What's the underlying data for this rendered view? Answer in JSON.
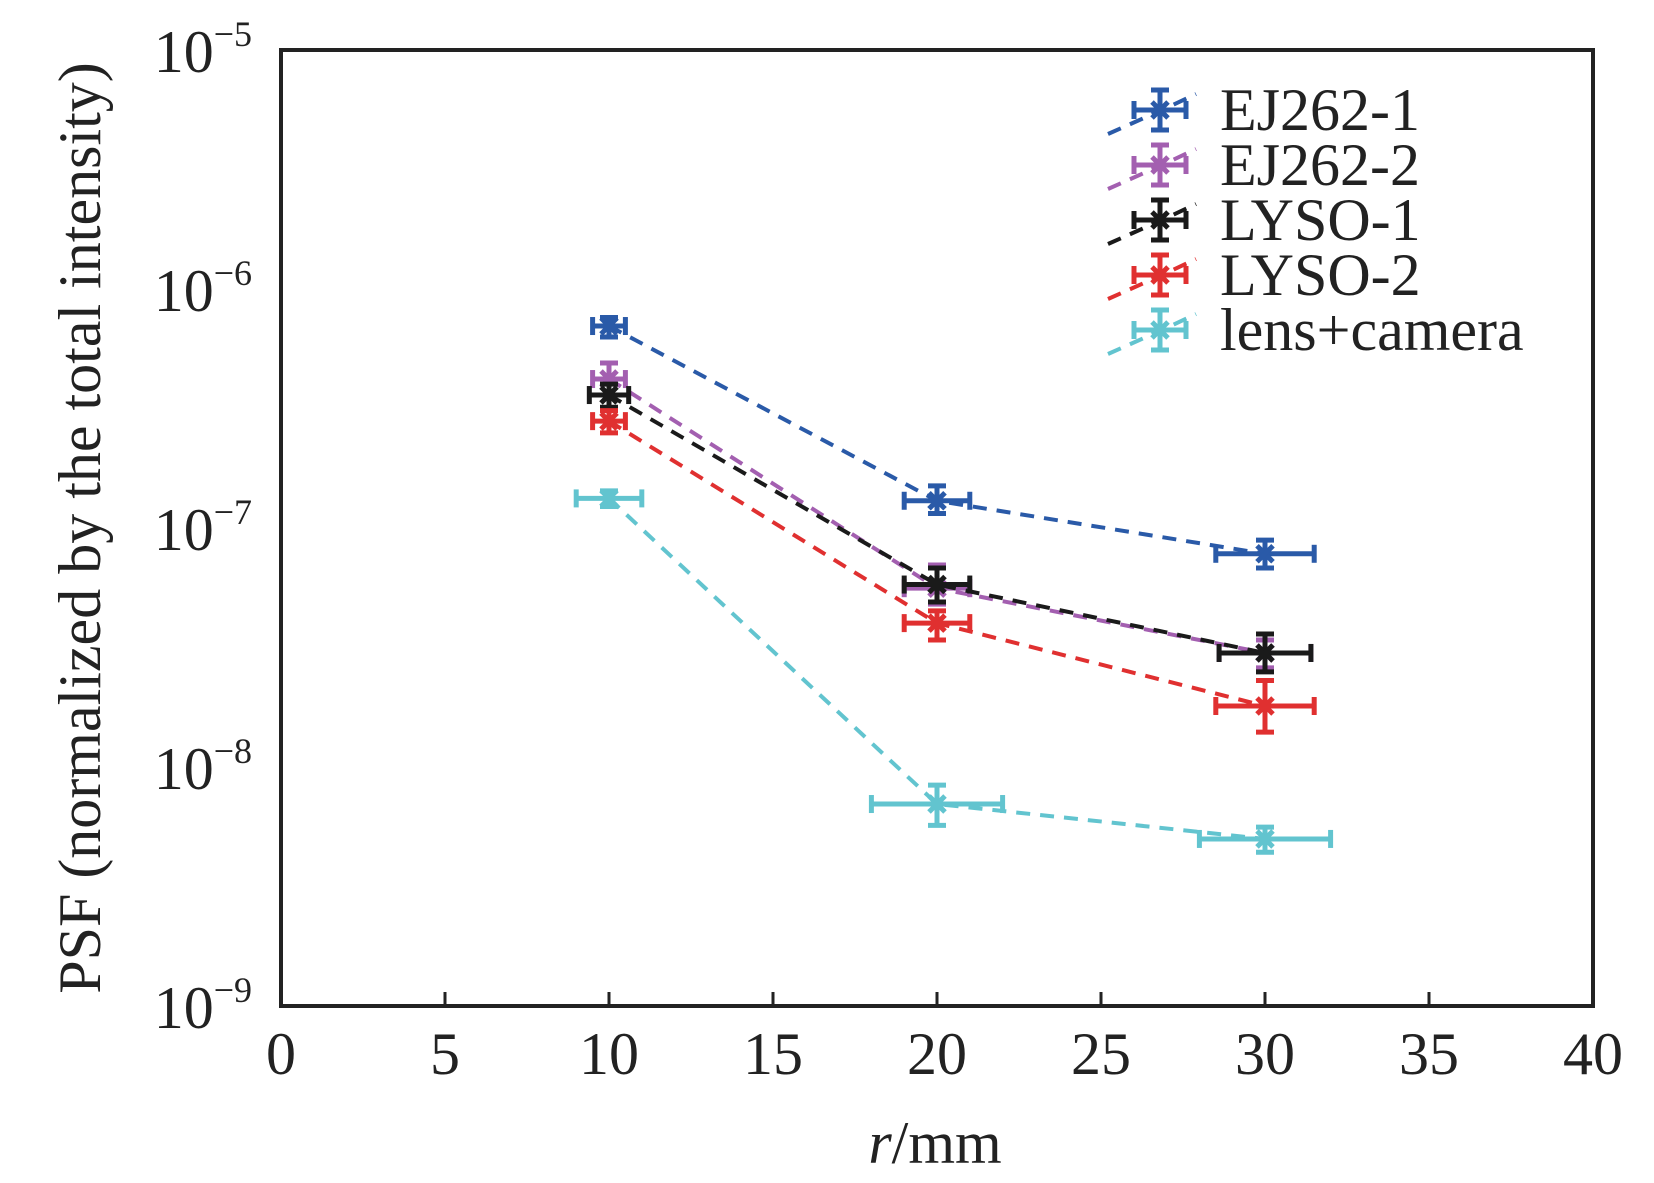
{
  "chart_data": {
    "type": "scatter",
    "xlabel": {
      "italic": "r",
      "rest": "/mm"
    },
    "ylabel": "PSF (normalized by the total intensity)",
    "xlim": [
      0,
      40
    ],
    "ylim": [
      1e-09,
      1e-05
    ],
    "yscale": "log",
    "grid": false,
    "legend_position": "top-right",
    "x_ticks": [
      "0",
      "5",
      "10",
      "15",
      "20",
      "25",
      "30",
      "35",
      "40"
    ],
    "y_ticks": [
      {
        "base": "10",
        "exp": "−5",
        "value": 1e-05
      },
      {
        "base": "10",
        "exp": "−6",
        "value": 1e-06
      },
      {
        "base": "10",
        "exp": "−7",
        "value": 1e-07
      },
      {
        "base": "10",
        "exp": "−8",
        "value": 1e-08
      },
      {
        "base": "10",
        "exp": "−9",
        "value": 1e-09
      }
    ],
    "series": [
      {
        "name": "EJ262-1",
        "color": "#2a5aa8",
        "x": [
          10,
          20,
          30
        ],
        "y": [
          7e-07,
          1.3e-07,
          7.8e-08
        ],
        "xerr": [
          0.5,
          1.0,
          1.5
        ],
        "yerr_low": [
          6.3e-07,
          1.15e-07,
          6.8e-08
        ],
        "yerr_high": [
          7.6e-07,
          1.5e-07,
          8.9e-08
        ]
      },
      {
        "name": "EJ262-2",
        "color": "#a35fb0",
        "x": [
          10,
          20,
          30
        ],
        "y": [
          4.2e-07,
          5.6e-08,
          3e-08
        ],
        "xerr": [
          0.5,
          1.0,
          1.4
        ],
        "yerr_low": [
          3.6e-07,
          4.8e-08,
          2.6e-08
        ],
        "yerr_high": [
          4.9e-07,
          7e-08,
          3.4e-08
        ]
      },
      {
        "name": "LYSO-1",
        "color": "#1a1a1a",
        "x": [
          10,
          20,
          30
        ],
        "y": [
          3.6e-07,
          5.8e-08,
          3e-08
        ],
        "xerr": [
          0.6,
          1.0,
          1.4
        ],
        "yerr_low": [
          3.2e-07,
          4.9e-08,
          2.5e-08
        ],
        "yerr_high": [
          4e-07,
          6.8e-08,
          3.6e-08
        ]
      },
      {
        "name": "LYSO-2",
        "color": "#e03030",
        "x": [
          10,
          20,
          30
        ],
        "y": [
          2.8e-07,
          4e-08,
          1.8e-08
        ],
        "xerr": [
          0.5,
          1.0,
          1.5
        ],
        "yerr_low": [
          2.5e-07,
          3.4e-08,
          1.4e-08
        ],
        "yerr_high": [
          3.1e-07,
          4.5e-08,
          2.3e-08
        ]
      },
      {
        "name": "lens+camera",
        "color": "#62c4cf",
        "x": [
          10,
          20,
          30
        ],
        "y": [
          1.33e-07,
          7e-09,
          5e-09
        ],
        "xerr": [
          1.0,
          2.0,
          2.0
        ],
        "yerr_low": [
          1.23e-07,
          5.7e-09,
          4.4e-09
        ],
        "yerr_high": [
          1.43e-07,
          8.4e-09,
          5.6e-09
        ]
      }
    ]
  }
}
